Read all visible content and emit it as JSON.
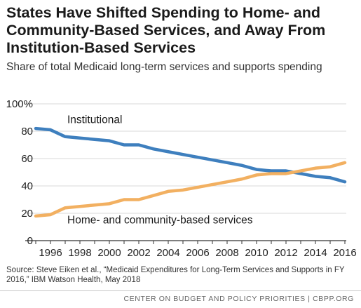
{
  "title": "States Have Shifted Spending to Home- and Community-Based Services, and Away From Institution-Based Services",
  "subtitle": "Share of total Medicaid long-term services and supports spending",
  "source": "Source:  Steve Eiken et al., “Medicaid Expenditures for Long-Term Services and Supports in FY 2016,” IBM Watson Health, May 2018",
  "footer": "CENTER ON BUDGET AND POLICY PRIORITIES | CBPP.ORG",
  "chart_data": {
    "type": "line",
    "title": "States Have Shifted Spending to Home- and Community-Based Services, and Away From Institution-Based Services",
    "subtitle": "Share of total Medicaid long-term services and supports spending",
    "xlabel": "",
    "ylabel": "",
    "xlim": [
      1995,
      2016
    ],
    "ylim": [
      0,
      100
    ],
    "x_ticks": [
      "1996",
      "1998",
      "2000",
      "2002",
      "2004",
      "2006",
      "2008",
      "2010",
      "2012",
      "2014",
      "2016"
    ],
    "y_ticks": [
      "0",
      "20",
      "40",
      "60",
      "80",
      "100%"
    ],
    "grid": "horizontal",
    "legend": "inline labels",
    "x": [
      1995,
      1996,
      1997,
      1998,
      1999,
      2000,
      2001,
      2002,
      2003,
      2004,
      2005,
      2006,
      2007,
      2008,
      2009,
      2010,
      2011,
      2012,
      2013,
      2014,
      2015,
      2016
    ],
    "series": [
      {
        "name": "Institutional",
        "color": "#3e7fbe",
        "values": [
          82,
          81,
          76,
          75,
          74,
          73,
          70,
          70,
          67,
          65,
          63,
          61,
          59,
          57,
          55,
          52,
          51,
          51,
          49,
          47,
          46,
          43
        ]
      },
      {
        "name": "Home- and community-based services",
        "color": "#f2b061",
        "values": [
          18,
          19,
          24,
          25,
          26,
          27,
          30,
          30,
          33,
          36,
          37,
          39,
          41,
          43,
          45,
          48,
          49,
          49,
          51,
          53,
          54,
          57
        ]
      }
    ]
  }
}
